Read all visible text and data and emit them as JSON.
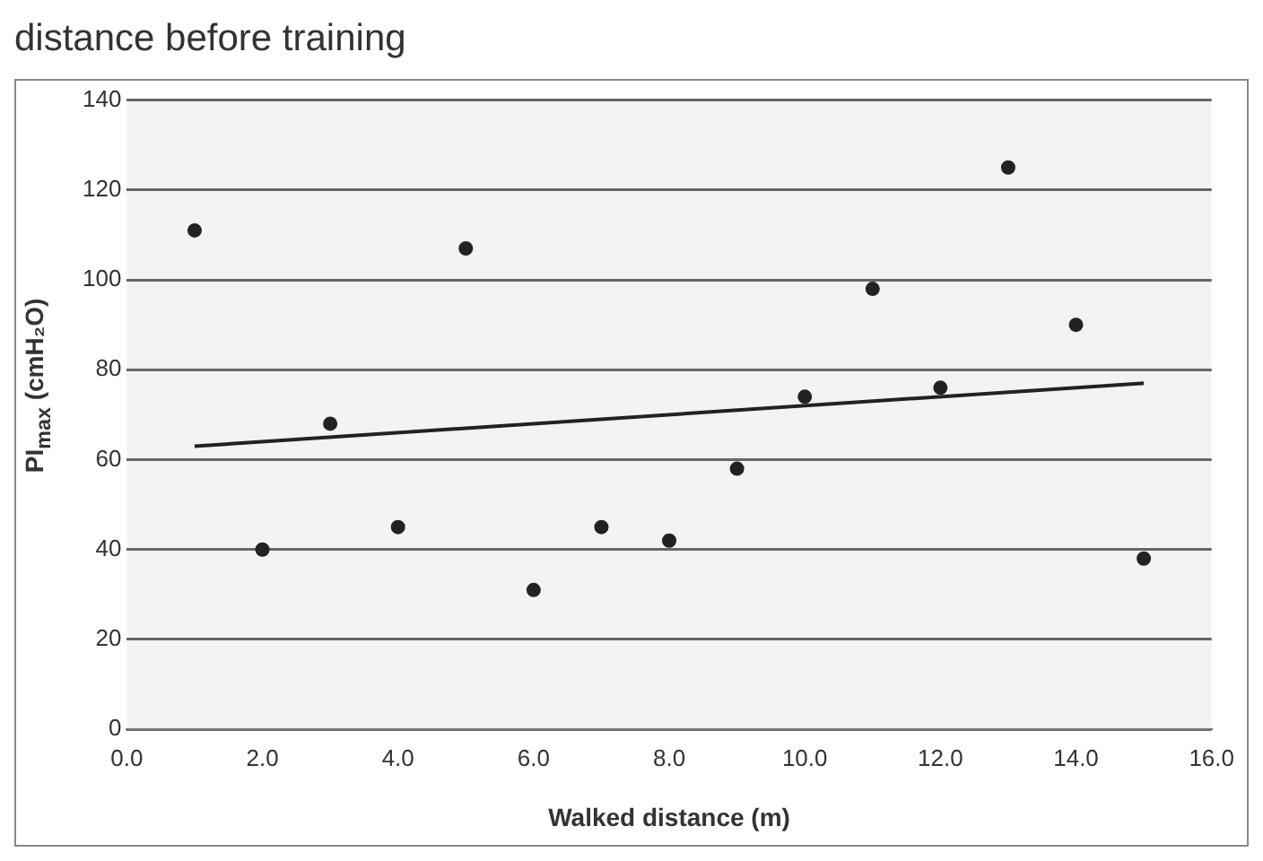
{
  "chart_data": {
    "type": "scatter",
    "title": "distance before training",
    "xlabel": "Walked distance (m)",
    "ylabel": "PI$_{max}$ (cmH₂O)",
    "series": [
      {
        "color": "#222222",
        "x": [
          1,
          2,
          3,
          4,
          5,
          6,
          7,
          8,
          9,
          10,
          11,
          12,
          13,
          14,
          15
        ],
        "values": [
          111,
          40,
          68,
          45,
          107,
          31,
          45,
          42,
          58,
          74,
          98,
          76,
          125,
          90,
          38
        ]
      },
      {
        "type": "line",
        "color": "#222222",
        "x": [
          1,
          15
        ],
        "values": [
          63,
          77
        ],
        "marker": "none"
      }
    ],
    "marker": "circle",
    "xlim": [
      0,
      16
    ],
    "xticks": [
      {
        "value": 0,
        "label": "0.0"
      },
      {
        "value": 2,
        "label": "2.0"
      },
      {
        "value": 4,
        "label": "4.0"
      },
      {
        "value": 6,
        "label": "6.0"
      },
      {
        "value": 8,
        "label": "8.0"
      },
      {
        "value": 10,
        "label": "10.0"
      },
      {
        "value": 12,
        "label": "12.0"
      },
      {
        "value": 14,
        "label": "14.0"
      },
      {
        "value": 16,
        "label": "16.0"
      }
    ],
    "ylim": [
      0,
      140
    ],
    "yticks": [
      0,
      20,
      40,
      60,
      80,
      100,
      120,
      140
    ],
    "grid": "y",
    "legend": false
  }
}
